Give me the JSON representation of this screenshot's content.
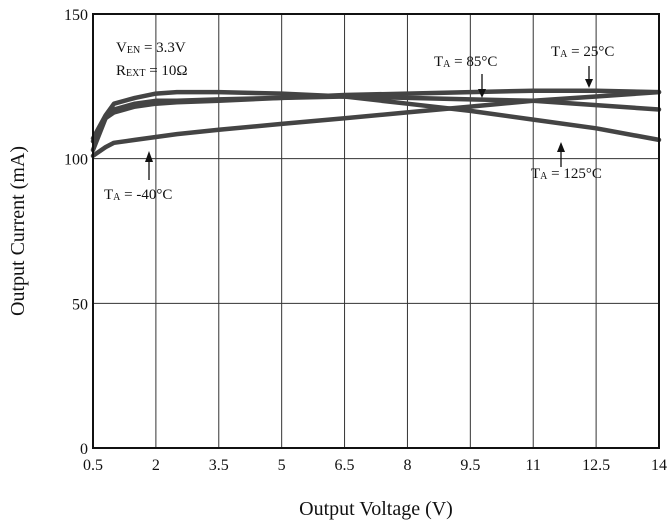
{
  "chart_data": {
    "type": "line",
    "xlabel": "Output Voltage (V)",
    "ylabel": "Output Current (mA)",
    "xlim": [
      0.5,
      14
    ],
    "ylim": [
      0,
      150
    ],
    "x_ticks": [
      0.5,
      2,
      3.5,
      5,
      6.5,
      8,
      9.5,
      11,
      12.5,
      14
    ],
    "x_tick_labels": [
      "0.5",
      "2",
      "3.5",
      "5",
      "6.5",
      "8",
      "9.5",
      "11",
      "12.5",
      "14"
    ],
    "y_ticks": [
      0,
      50,
      100,
      150
    ],
    "y_tick_labels": [
      "0",
      "50",
      "100",
      "150"
    ],
    "grid": true,
    "line_color": "#444444",
    "series": [
      {
        "name": "TA = 25°C",
        "x": [
          0.5,
          0.8,
          1.0,
          1.5,
          2.0,
          2.5,
          3.5,
          5,
          6.5,
          8,
          9.5,
          11,
          12.5,
          14
        ],
        "y": [
          103,
          114,
          117,
          119,
          120,
          120,
          120.5,
          121,
          122,
          122.5,
          123,
          123.5,
          123.5,
          123
        ]
      },
      {
        "name": "TA = 85°C",
        "x": [
          0.5,
          0.8,
          1.0,
          1.5,
          2.0,
          2.5,
          3.5,
          5,
          6.5,
          8,
          9.5,
          11,
          12.5,
          14
        ],
        "y": [
          106,
          114,
          116,
          118,
          119,
          119.5,
          120,
          121,
          121.5,
          121,
          120.5,
          120,
          118.5,
          117
        ]
      },
      {
        "name": "TA = -40°C",
        "x": [
          0.5,
          0.8,
          1.0,
          1.5,
          2.0,
          2.5,
          3.5,
          5,
          6.5,
          8,
          9.5,
          11,
          12.5,
          14
        ],
        "y": [
          101,
          104,
          105.5,
          106.5,
          107.5,
          108.5,
          110,
          112,
          114,
          116,
          118,
          120,
          121.5,
          123
        ]
      },
      {
        "name": "TA = 125°C",
        "x": [
          0.5,
          0.8,
          1.0,
          1.5,
          2.0,
          2.5,
          3.5,
          5,
          6.5,
          8,
          9.5,
          11,
          12.5,
          14
        ],
        "y": [
          107,
          115,
          119,
          121,
          122.5,
          123,
          123,
          122.5,
          121.5,
          119,
          116.5,
          113.5,
          110.5,
          106.5
        ]
      }
    ],
    "conditions": [
      "VEN = 3.3V",
      "REXT = 10Ω"
    ]
  }
}
